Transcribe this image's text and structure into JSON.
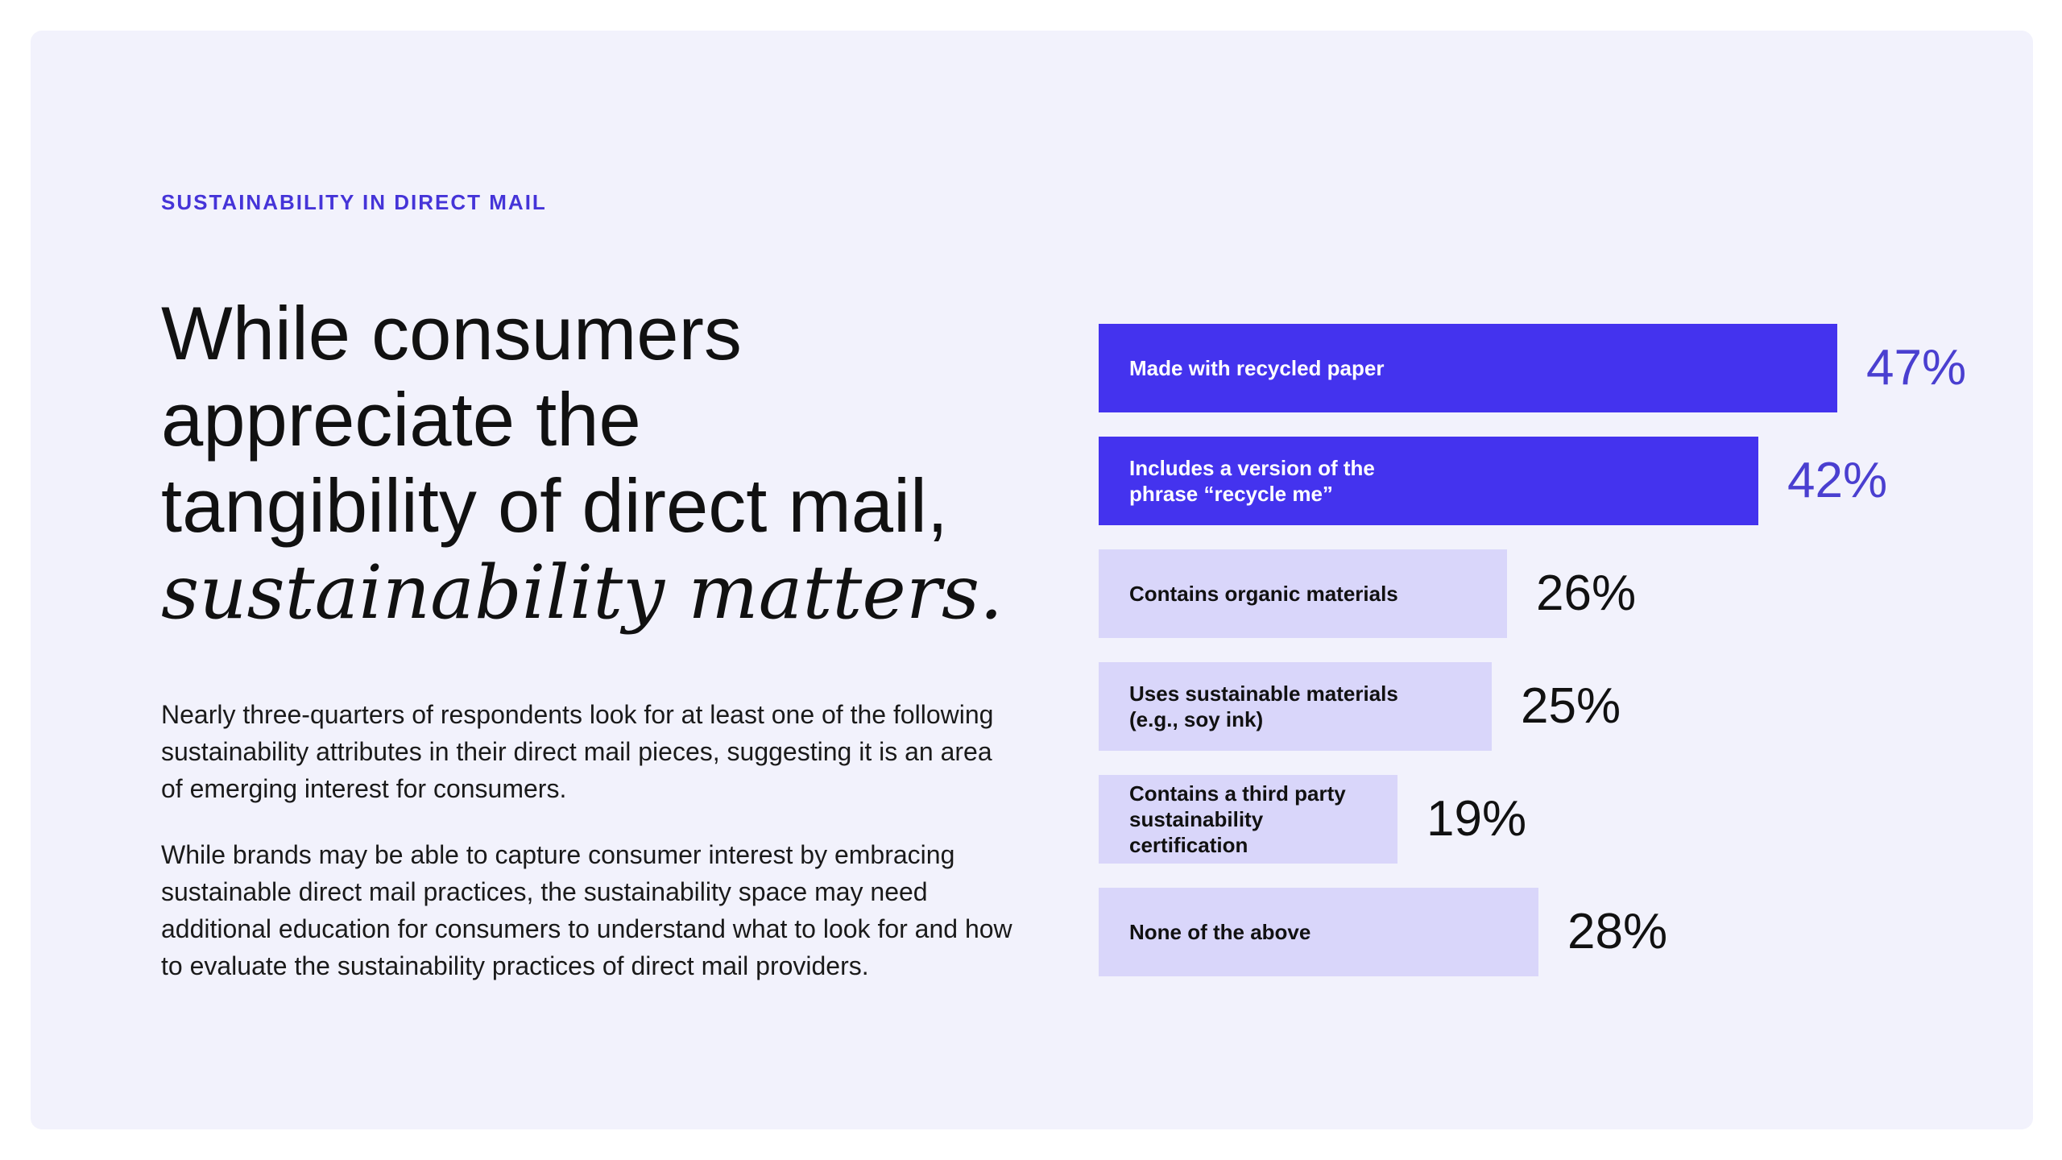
{
  "eyebrow": "SUSTAINABILITY IN DIRECT MAIL",
  "headline": {
    "line1": "While consumers",
    "line2": "appreciate the",
    "line3": "tangibility of direct mail,",
    "emphasis": "sustainability matters."
  },
  "body": {
    "paragraph1": "Nearly three-quarters of respondents look for at least one of the following sustainability attributes in their direct mail pieces, suggesting it is an area of emerging interest for consumers.",
    "paragraph2": "While brands may be able to capture consumer interest by embracing sustainable direct mail practices, the sustainability space may need additional education for consumers to understand what to look for and how to evaluate the sustainability practices of direct mail providers."
  },
  "colors": {
    "highlight_bar": "#4433ee",
    "normal_bar": "#d9d6fa",
    "highlight_value": "#4a3fd0",
    "normal_value": "#111111",
    "accent": "#4534d8"
  },
  "chart_data": {
    "type": "bar",
    "orientation": "horizontal",
    "title": "",
    "xlabel": "",
    "ylabel": "",
    "unit": "%",
    "xlim": [
      0,
      47
    ],
    "categories": [
      "Made with recycled paper",
      "Includes a version of the phrase “recycle me”",
      "Contains organic materials",
      "Uses sustainable materials (e.g., soy ink)",
      "Contains a third party sustainability certification",
      "None of the above"
    ],
    "values": [
      47,
      42,
      26,
      25,
      19,
      28
    ],
    "value_labels": [
      "47%",
      "42%",
      "26%",
      "25%",
      "19%",
      "28%"
    ],
    "highlighted": [
      true,
      true,
      false,
      false,
      false,
      false
    ]
  }
}
